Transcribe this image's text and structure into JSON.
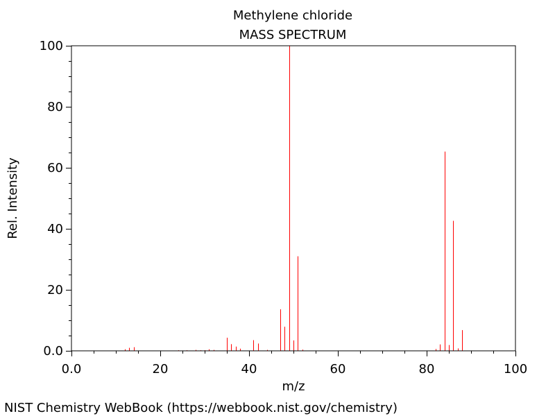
{
  "chart_data": {
    "type": "bar",
    "title": "Methylene chloride",
    "subtitle": "MASS SPECTRUM",
    "xlabel": "m/z",
    "ylabel": "Rel. Intensity",
    "xlim": [
      0,
      100
    ],
    "ylim": [
      0,
      100
    ],
    "xticks": [
      "0.0",
      "20",
      "40",
      "60",
      "80",
      "100"
    ],
    "yticks": [
      "0.0",
      "20",
      "40",
      "60",
      "80",
      "100"
    ],
    "grid": false,
    "bar_color": "#ff0000",
    "peaks": [
      {
        "x": 12,
        "y": 0.5
      },
      {
        "x": 13,
        "y": 1.0
      },
      {
        "x": 14,
        "y": 1.2
      },
      {
        "x": 24,
        "y": 0.2
      },
      {
        "x": 26,
        "y": 0.2
      },
      {
        "x": 28,
        "y": 0.3
      },
      {
        "x": 29,
        "y": 0.2
      },
      {
        "x": 30,
        "y": 0.2
      },
      {
        "x": 31,
        "y": 0.5
      },
      {
        "x": 32,
        "y": 0.3
      },
      {
        "x": 35,
        "y": 4.3
      },
      {
        "x": 36,
        "y": 2.2
      },
      {
        "x": 37,
        "y": 1.4
      },
      {
        "x": 38,
        "y": 0.7
      },
      {
        "x": 41,
        "y": 3.5
      },
      {
        "x": 42,
        "y": 2.4
      },
      {
        "x": 44,
        "y": 0.3
      },
      {
        "x": 47,
        "y": 13.6
      },
      {
        "x": 48,
        "y": 7.9
      },
      {
        "x": 49,
        "y": 100
      },
      {
        "x": 50,
        "y": 3.4
      },
      {
        "x": 51,
        "y": 31.0
      },
      {
        "x": 52,
        "y": 0.4
      },
      {
        "x": 82,
        "y": 0.6
      },
      {
        "x": 83,
        "y": 2.1
      },
      {
        "x": 84,
        "y": 65.3
      },
      {
        "x": 85,
        "y": 1.9
      },
      {
        "x": 86,
        "y": 42.6
      },
      {
        "x": 87,
        "y": 0.8
      },
      {
        "x": 88,
        "y": 6.8
      }
    ]
  },
  "footer": {
    "credit": "NIST Chemistry WebBook (https://webbook.nist.gov/chemistry)"
  }
}
